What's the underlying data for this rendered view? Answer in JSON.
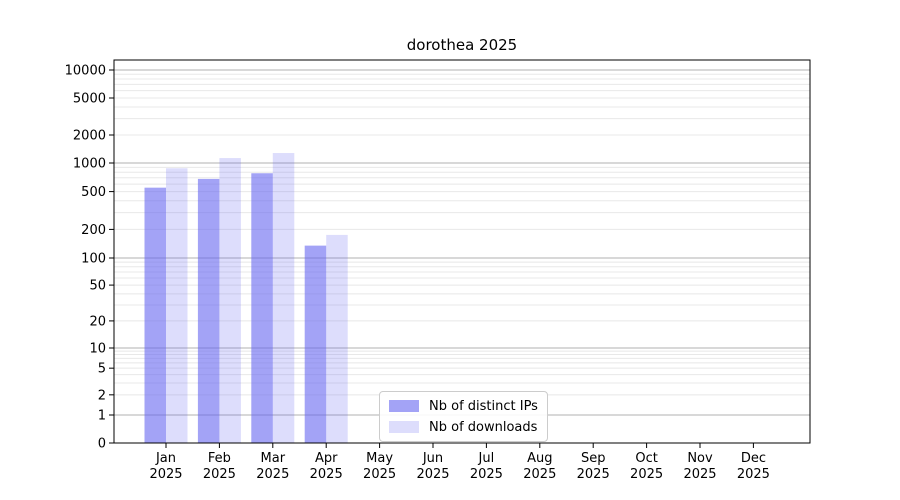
{
  "chart_data": {
    "type": "bar",
    "title": "dorothea 2025",
    "categories": [
      "Jan",
      "Feb",
      "Mar",
      "Apr",
      "May",
      "Jun",
      "Jul",
      "Aug",
      "Sep",
      "Oct",
      "Nov",
      "Dec"
    ],
    "year": "2025",
    "series": [
      {
        "name": "Nb of distinct IPs",
        "color": "rgba(102,102,240,0.60)",
        "values": [
          550,
          680,
          780,
          135,
          null,
          null,
          null,
          null,
          null,
          null,
          null,
          null
        ]
      },
      {
        "name": "Nb of downloads",
        "color": "rgba(102,102,240,0.22)",
        "values": [
          880,
          1130,
          1280,
          175,
          null,
          null,
          null,
          null,
          null,
          null,
          null,
          null
        ]
      }
    ],
    "y_ticks": [
      10000,
      5000,
      2000,
      1000,
      500,
      200,
      100,
      50,
      20,
      10,
      5,
      2,
      1,
      0
    ],
    "y_scale": "symlog",
    "ylim": [
      0,
      12800
    ],
    "xlabel": "",
    "ylabel": "",
    "grid": true,
    "legend_position": "lower-center-inside",
    "colors": {
      "major_grid": "#b0b0b0",
      "minor_grid": "#e8e8e8",
      "spine": "#000000",
      "text": "#000000"
    }
  }
}
